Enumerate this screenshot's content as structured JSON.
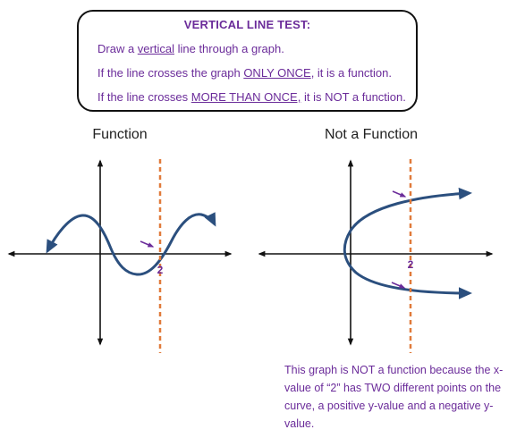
{
  "rule_box": {
    "title": "VERTICAL LINE TEST:",
    "line1": {
      "pre": "Draw a ",
      "u": "vertical",
      "post": " line through a graph."
    },
    "line2": {
      "pre": "If the line crosses the graph ",
      "u": "ONLY ONCE",
      "post": ", it is a function."
    },
    "line3": {
      "pre": "If the line crosses ",
      "u": "MORE THAN ONCE,",
      "post": " it is NOT a function."
    }
  },
  "graphs": {
    "left_title": "Function",
    "right_title": "Not a Function",
    "x_marker": "2"
  },
  "note": "This graph is NOT a function because the x-value of “2” has TWO different points on the curve, a positive y-value and a negative y-value.",
  "colors": {
    "text": "#6b2c9a",
    "curve": "#2b4f7e",
    "test_line": "#e07a3a",
    "axes": "#111111"
  }
}
